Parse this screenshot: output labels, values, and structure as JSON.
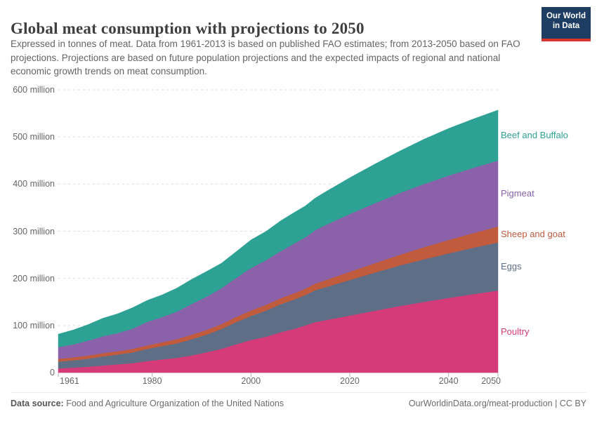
{
  "logo": {
    "line1": "Our World",
    "line2": "in Data",
    "bg_color": "#1d3d63",
    "bar_color": "#d8352f"
  },
  "chart_data": {
    "type": "area",
    "stacked": true,
    "title": "Global meat consumption with projections to 2050",
    "subtitle": "Expressed in tonnes of meat. Data from 1961-2013 is based on published FAO estimates; from 2013-2050 based on FAO projections. Projections are based on future population projections and the expected impacts of regional and national economic growth trends on meat consumption.",
    "unit": "tonnes (millions)",
    "xlim": [
      1961,
      2050
    ],
    "ylim": [
      0,
      600
    ],
    "grid": "horizontal-dashed",
    "legend_position": "right-inline-colored-labels",
    "x": [
      1961,
      1964,
      1967,
      1970,
      1973,
      1976,
      1979,
      1982,
      1985,
      1988,
      1991,
      1994,
      1997,
      2000,
      2003,
      2006,
      2009,
      2011,
      2013,
      2015,
      2020,
      2025,
      2030,
      2035,
      2040,
      2045,
      2050
    ],
    "series": [
      {
        "name": "Poultry",
        "color": "#d53b78",
        "values": [
          9.0,
          10.5,
          12.5,
          15.1,
          17.5,
          20.0,
          24.5,
          28.0,
          31.2,
          36.5,
          43.0,
          50.5,
          60.0,
          69.2,
          76.0,
          85.5,
          93.5,
          100.0,
          107.0,
          111.0,
          121.0,
          131.0,
          141.0,
          150.0,
          158.5,
          166.5,
          174.0
        ]
      },
      {
        "name": "Eggs",
        "color": "#5f6e87",
        "values": [
          14.2,
          15.5,
          17.0,
          19.1,
          20.8,
          22.9,
          25.8,
          28.3,
          30.8,
          34.4,
          37.5,
          42.0,
          47.0,
          51.0,
          55.5,
          59.5,
          62.5,
          64.5,
          67.8,
          70.0,
          75.5,
          81.0,
          86.0,
          90.5,
          94.5,
          98.5,
          102.0
        ]
      },
      {
        "name": "Sheep and goat",
        "color": "#c05b3d",
        "values": [
          6.0,
          6.3,
          6.7,
          7.0,
          6.9,
          7.2,
          7.4,
          8.0,
          8.8,
          9.5,
          10.0,
          10.3,
          11.0,
          11.5,
          12.2,
          13.0,
          13.3,
          13.6,
          14.0,
          15.0,
          17.5,
          20.0,
          22.5,
          25.5,
          28.5,
          31.0,
          34.0
        ]
      },
      {
        "name": "Pigmeat",
        "color": "#8b62aa",
        "values": [
          24.7,
          27.5,
          31.5,
          35.8,
          38.5,
          43.0,
          50.0,
          53.5,
          58.5,
          65.0,
          70.5,
          76.0,
          83.0,
          90.0,
          94.5,
          99.5,
          106.0,
          109.0,
          113.5,
          116.5,
          122.5,
          127.0,
          131.0,
          134.0,
          136.5,
          138.5,
          140.0
        ]
      },
      {
        "name": "Beef and Buffalo",
        "color": "#2da193",
        "values": [
          27.7,
          30.5,
          34.0,
          38.3,
          41.0,
          44.5,
          45.5,
          47.0,
          50.0,
          52.5,
          53.5,
          53.0,
          55.5,
          59.8,
          61.0,
          64.5,
          66.0,
          66.5,
          68.0,
          70.5,
          77.0,
          83.0,
          89.0,
          95.0,
          100.0,
          103.5,
          107.0
        ]
      }
    ],
    "xticks": [
      1961,
      1980,
      2000,
      2020,
      2040,
      2050
    ],
    "yticks": [
      {
        "v": 0,
        "label": "0"
      },
      {
        "v": 100,
        "label": "100 million"
      },
      {
        "v": 200,
        "label": "200 million"
      },
      {
        "v": 300,
        "label": "300 million"
      },
      {
        "v": 400,
        "label": "400 million"
      },
      {
        "v": 500,
        "label": "500 million"
      },
      {
        "v": 600,
        "label": "600 million"
      }
    ]
  },
  "footer": {
    "source_label": "Data source:",
    "source": " Food and Agriculture Organization of the United Nations",
    "link": "OurWorldinData.org/meat-production | CC BY"
  }
}
